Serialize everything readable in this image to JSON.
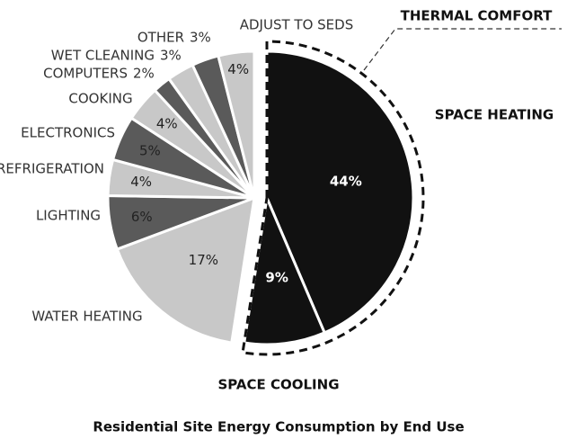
{
  "chart_data": {
    "type": "pie",
    "title": "Residential Site Energy Consumption by End Use",
    "annotation": "THERMAL COMFORT",
    "categories": [
      "SPACE HEATING",
      "SPACE COOLING",
      "WATER HEATING",
      "LIGHTING",
      "REFRIGERATION",
      "ELECTRONICS",
      "COOKING",
      "COMPUTERS",
      "WET CLEANING",
      "OTHER",
      "ADJUST TO SEDS"
    ],
    "values": [
      44,
      9,
      17,
      6,
      4,
      5,
      4,
      2,
      3,
      3,
      4
    ],
    "value_labels": [
      "44%",
      "9%",
      "17%",
      "6%",
      "4%",
      "5%",
      "4%",
      "2%",
      "3%",
      "3%",
      "4%"
    ],
    "colors": [
      "#111111",
      "#111111",
      "#c8c8c8",
      "#5a5a5a",
      "#c8c8c8",
      "#5a5a5a",
      "#c8c8c8",
      "#5a5a5a",
      "#c8c8c8",
      "#5a5a5a",
      "#c8c8c8"
    ]
  }
}
